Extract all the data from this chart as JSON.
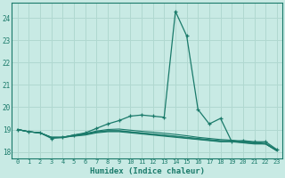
{
  "xlabel": "Humidex (Indice chaleur)",
  "ylabel": "",
  "bg_color": "#c8eae4",
  "grid_color": "#b0d8d0",
  "line_color": "#1a7a6a",
  "xlim": [
    -0.5,
    23.5
  ],
  "ylim": [
    17.7,
    24.7
  ],
  "yticks": [
    18,
    19,
    20,
    21,
    22,
    23,
    24
  ],
  "xticks": [
    0,
    1,
    2,
    3,
    4,
    5,
    6,
    7,
    8,
    9,
    10,
    11,
    12,
    13,
    14,
    15,
    16,
    17,
    18,
    19,
    20,
    21,
    22,
    23
  ],
  "lines": [
    [
      19.0,
      18.9,
      18.85,
      18.6,
      18.65,
      18.75,
      18.85,
      19.05,
      19.25,
      19.4,
      19.6,
      19.65,
      19.6,
      19.55,
      24.3,
      23.2,
      19.9,
      19.25,
      19.5,
      18.45,
      18.5,
      18.45,
      18.45,
      18.1
    ],
    [
      19.0,
      18.9,
      18.85,
      18.65,
      18.65,
      18.7,
      18.75,
      18.85,
      18.9,
      18.9,
      18.85,
      18.8,
      18.75,
      18.7,
      18.65,
      18.6,
      18.55,
      18.5,
      18.45,
      18.45,
      18.4,
      18.35,
      18.35,
      18.05
    ],
    [
      19.0,
      18.9,
      18.85,
      18.65,
      18.65,
      18.75,
      18.8,
      18.9,
      18.95,
      18.95,
      18.9,
      18.85,
      18.8,
      18.75,
      18.7,
      18.65,
      18.6,
      18.55,
      18.5,
      18.5,
      18.45,
      18.4,
      18.35,
      18.05
    ],
    [
      19.0,
      18.9,
      18.85,
      18.65,
      18.65,
      18.75,
      18.82,
      18.93,
      19.0,
      19.02,
      18.97,
      18.92,
      18.88,
      18.83,
      18.78,
      18.72,
      18.65,
      18.6,
      18.55,
      18.52,
      18.48,
      18.42,
      18.38,
      18.07
    ],
    [
      19.0,
      18.9,
      18.85,
      18.63,
      18.63,
      18.72,
      18.78,
      18.88,
      18.93,
      18.93,
      18.88,
      18.83,
      18.78,
      18.73,
      18.68,
      18.62,
      18.57,
      18.52,
      18.47,
      18.47,
      18.42,
      18.37,
      18.36,
      18.04
    ]
  ],
  "main_line_idx": 0
}
